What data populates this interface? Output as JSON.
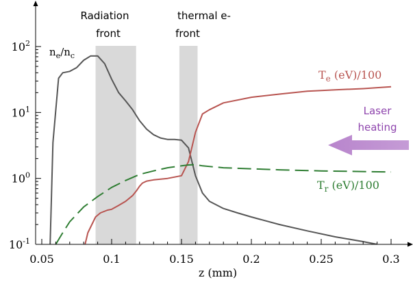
{
  "chart_data": {
    "type": "line",
    "title": "",
    "xlabel": "z (mm)",
    "ylabel": "",
    "yscale": "log",
    "xlim": [
      0.05,
      0.31
    ],
    "ylim": [
      0.1,
      150
    ],
    "grid": false,
    "x_ticks": [
      0.05,
      0.1,
      0.15,
      0.2,
      0.25,
      0.3
    ],
    "x_tick_labels": [
      "0.05",
      "0.1",
      "0.15",
      "0.2",
      "0.25",
      "0.3"
    ],
    "y_ticks": [
      0.1,
      1,
      10,
      100
    ],
    "y_tick_labels": [
      {
        "base": "10",
        "exp": "-1"
      },
      {
        "base": "10",
        "exp": "0"
      },
      {
        "base": "10",
        "exp": "1"
      },
      {
        "base": "10",
        "exp": "2"
      }
    ],
    "shaded_regions": [
      {
        "label_lines": [
          "Radiation",
          "front"
        ],
        "x": [
          0.0885,
          0.1175
        ]
      },
      {
        "label_lines": [
          "thermal e-",
          "front"
        ],
        "x": [
          0.1485,
          0.1615
        ]
      }
    ],
    "series": [
      {
        "label_base": "n",
        "label_sub1": "e",
        "label_mid": "/n",
        "label_sub2": "c",
        "color": "#555555",
        "dash": "solid",
        "points": [
          [
            0.056,
            0.1
          ],
          [
            0.058,
            3.5
          ],
          [
            0.062,
            33
          ],
          [
            0.065,
            40
          ],
          [
            0.07,
            42
          ],
          [
            0.075,
            48
          ],
          [
            0.08,
            62
          ],
          [
            0.085,
            72
          ],
          [
            0.09,
            72
          ],
          [
            0.095,
            55
          ],
          [
            0.1,
            32
          ],
          [
            0.105,
            20
          ],
          [
            0.11,
            15
          ],
          [
            0.115,
            11
          ],
          [
            0.12,
            7.5
          ],
          [
            0.125,
            5.6
          ],
          [
            0.13,
            4.6
          ],
          [
            0.135,
            4.1
          ],
          [
            0.14,
            3.9
          ],
          [
            0.145,
            3.9
          ],
          [
            0.15,
            3.8
          ],
          [
            0.155,
            2.9
          ],
          [
            0.16,
            1.1
          ],
          [
            0.165,
            0.6
          ],
          [
            0.17,
            0.45
          ],
          [
            0.18,
            0.35
          ],
          [
            0.19,
            0.3
          ],
          [
            0.2,
            0.26
          ],
          [
            0.22,
            0.2
          ],
          [
            0.24,
            0.16
          ],
          [
            0.26,
            0.13
          ],
          [
            0.28,
            0.11
          ],
          [
            0.29,
            0.1
          ]
        ]
      },
      {
        "label_base": "T",
        "label_sub": "e",
        "label_text": " (eV)/100",
        "color": "#b85450",
        "dash": "solid",
        "points": [
          [
            0.081,
            0.1
          ],
          [
            0.083,
            0.15
          ],
          [
            0.0885,
            0.26
          ],
          [
            0.092,
            0.3
          ],
          [
            0.097,
            0.33
          ],
          [
            0.1,
            0.34
          ],
          [
            0.105,
            0.39
          ],
          [
            0.11,
            0.45
          ],
          [
            0.115,
            0.55
          ],
          [
            0.118,
            0.66
          ],
          [
            0.12,
            0.76
          ],
          [
            0.122,
            0.85
          ],
          [
            0.125,
            0.91
          ],
          [
            0.13,
            0.95
          ],
          [
            0.14,
            1.0
          ],
          [
            0.15,
            1.1
          ],
          [
            0.155,
            1.8
          ],
          [
            0.16,
            5.0
          ],
          [
            0.165,
            9.5
          ],
          [
            0.17,
            11
          ],
          [
            0.18,
            14
          ],
          [
            0.2,
            17
          ],
          [
            0.22,
            19
          ],
          [
            0.24,
            21
          ],
          [
            0.26,
            22
          ],
          [
            0.28,
            23
          ],
          [
            0.3,
            24.5
          ]
        ]
      },
      {
        "label_base": "T",
        "label_sub": "r",
        "label_text": " (eV)/100",
        "color": "#2e7d32",
        "dash": "dashed",
        "points": [
          [
            0.06,
            0.1
          ],
          [
            0.065,
            0.15
          ],
          [
            0.07,
            0.22
          ],
          [
            0.08,
            0.37
          ],
          [
            0.09,
            0.53
          ],
          [
            0.1,
            0.73
          ],
          [
            0.11,
            0.93
          ],
          [
            0.12,
            1.15
          ],
          [
            0.13,
            1.3
          ],
          [
            0.14,
            1.45
          ],
          [
            0.15,
            1.55
          ],
          [
            0.155,
            1.6
          ],
          [
            0.16,
            1.62
          ],
          [
            0.165,
            1.55
          ],
          [
            0.18,
            1.45
          ],
          [
            0.2,
            1.4
          ],
          [
            0.22,
            1.35
          ],
          [
            0.25,
            1.3
          ],
          [
            0.3,
            1.25
          ]
        ]
      }
    ],
    "annotation": {
      "lines": [
        "Laser",
        "heating"
      ],
      "color": "#8e44ad"
    }
  }
}
